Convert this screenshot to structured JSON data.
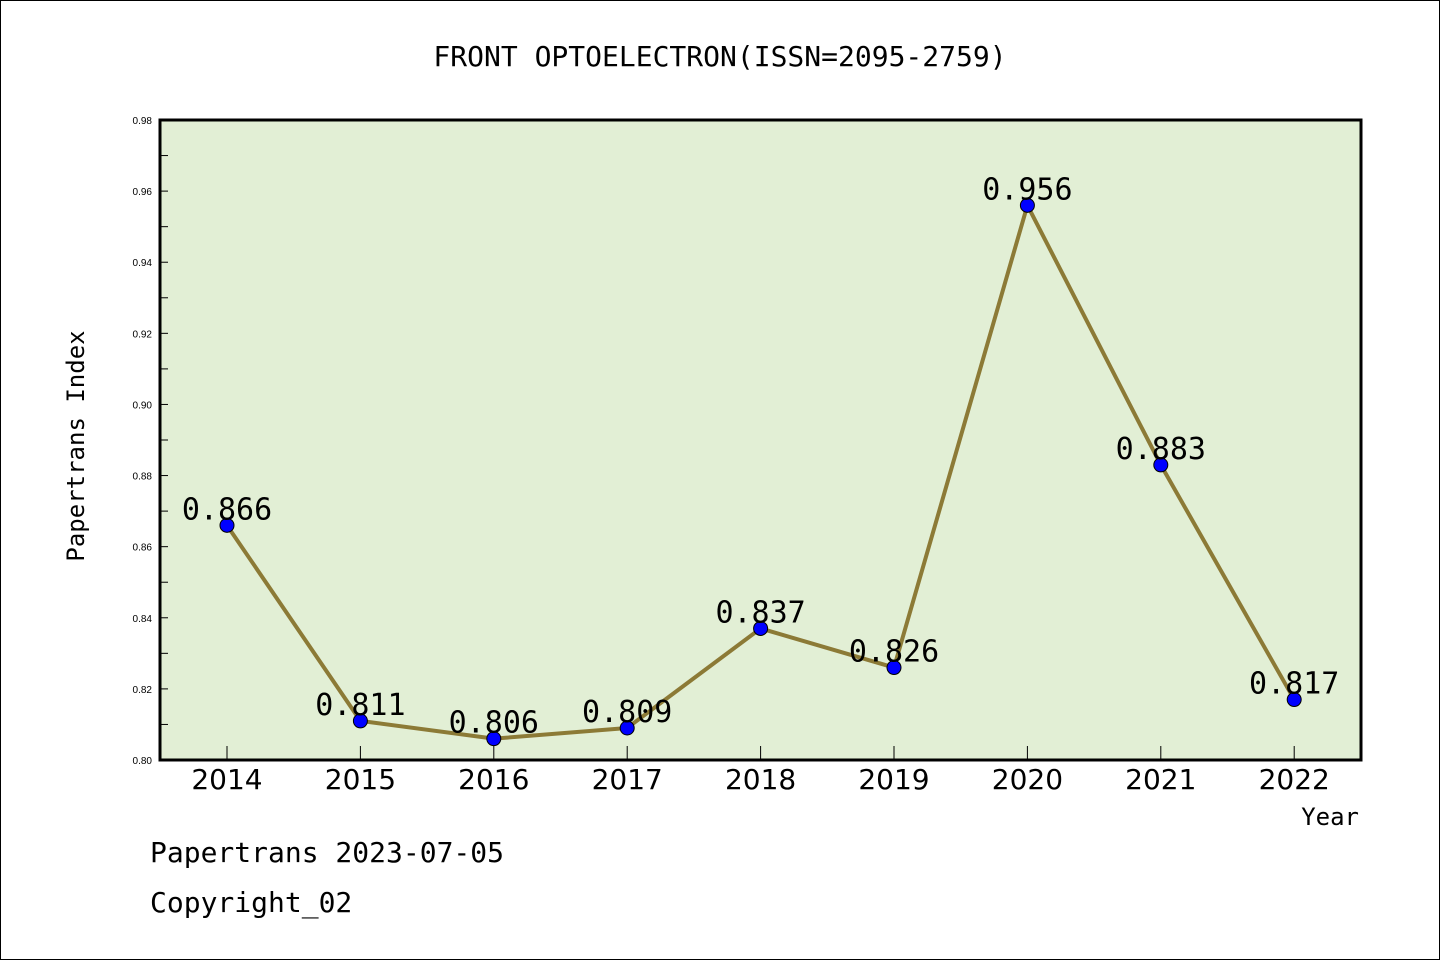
{
  "chart_data": {
    "type": "line",
    "title": "FRONT OPTOELECTRON(ISSN=2095-2759)",
    "xlabel": "Year",
    "ylabel": "Papertrans Index",
    "categories": [
      "2014",
      "2015",
      "2016",
      "2017",
      "2018",
      "2019",
      "2020",
      "2021",
      "2022"
    ],
    "values": [
      0.866,
      0.811,
      0.806,
      0.809,
      0.837,
      0.826,
      0.956,
      0.883,
      0.817
    ],
    "data_labels": [
      "0.866",
      "0.811",
      "0.806",
      "0.809",
      "0.837",
      "0.826",
      "0.956",
      "0.883",
      "0.817"
    ],
    "ylim": [
      0.8,
      0.98
    ],
    "yticks": [
      "0.80",
      "0.82",
      "0.84",
      "0.86",
      "0.88",
      "0.90",
      "0.92",
      "0.94",
      "0.96",
      "0.98"
    ],
    "grid": false,
    "legend": "none",
    "colors": {
      "plot_background": "#e2efd5",
      "line": "#8c7a36",
      "marker": "#0000ff"
    }
  },
  "footer": {
    "line1": "Papertrans 2023-07-05",
    "line2": "Copyright_02"
  }
}
